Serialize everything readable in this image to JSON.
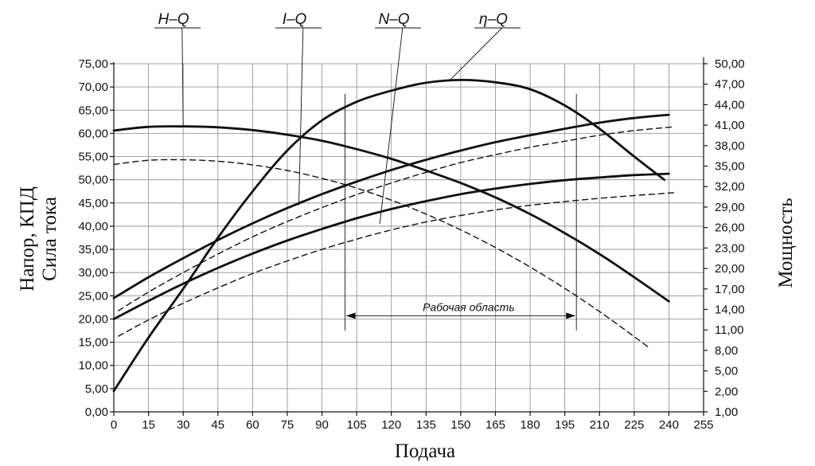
{
  "chart_data": {
    "type": "line",
    "title": "",
    "xlabel": "Подача",
    "ylabel_left": [
      "Напор, КПД",
      "Сила тока"
    ],
    "ylabel_right": "Мощность",
    "xlim": [
      0,
      255
    ],
    "ylim_left": [
      0,
      75
    ],
    "ylim_right": [
      1,
      50
    ],
    "x_ticks": [
      "0",
      "15",
      "30",
      "45",
      "60",
      "75",
      "90",
      "105",
      "120",
      "135",
      "150",
      "165",
      "180",
      "195",
      "210",
      "225",
      "240",
      "255"
    ],
    "y_left_ticks": [
      "0,00",
      "5,00",
      "10,00",
      "15,00",
      "20,00",
      "25,00",
      "30,00",
      "35,00",
      "40,00",
      "45,00",
      "50,00",
      "55,00",
      "60,00",
      "65,00",
      "70,00",
      "75,00"
    ],
    "y_right_ticks": [
      "1,00",
      "2,00",
      "5,00",
      "8,00",
      "11,00",
      "14,00",
      "17,00",
      "20,00",
      "23,00",
      "26,00",
      "29,00",
      "32,00",
      "35,00",
      "38,00",
      "41,00",
      "44,00",
      "47,00",
      "50,00"
    ],
    "grid": true,
    "curve_labels": [
      {
        "text": "H–Q",
        "x": 30,
        "y": 61.5
      },
      {
        "text": "I–Q",
        "x": 80,
        "y": 44.5
      },
      {
        "text": "N–Q",
        "x": 115,
        "y": 40.5
      },
      {
        "text": "η–Q",
        "x": 145,
        "y": 71.3
      }
    ],
    "working_area": {
      "label": "Рабочая область",
      "x_start": 100,
      "x_end": 200
    },
    "series": [
      {
        "style": "solid",
        "x": [
          0,
          15,
          30,
          45,
          60,
          75,
          90,
          105,
          120,
          135,
          150,
          165,
          180,
          195,
          210,
          225,
          240
        ],
        "y": [
          60.6,
          61.4,
          61.5,
          61.3,
          60.7,
          59.7,
          58.4,
          56.6,
          54.5,
          52.0,
          49.3,
          46.2,
          42.6,
          38.5,
          34.0,
          29.0,
          23.8
        ]
      },
      {
        "style": "dashed",
        "x": [
          0,
          15,
          30,
          45,
          60,
          75,
          90,
          105,
          120,
          135,
          150,
          165,
          180,
          195,
          210,
          225,
          232
        ],
        "y": [
          53.3,
          54.2,
          54.3,
          54.0,
          53.2,
          52.0,
          50.3,
          48.2,
          45.6,
          42.6,
          39.2,
          35.4,
          31.2,
          26.6,
          21.6,
          16.2,
          13.6
        ]
      },
      {
        "style": "solid",
        "x": [
          0,
          15,
          30,
          45,
          60,
          75,
          90,
          105,
          120,
          135,
          150,
          165,
          180,
          195,
          210,
          225,
          240
        ],
        "y": [
          24.5,
          29.0,
          33.1,
          37.0,
          40.6,
          43.9,
          46.9,
          49.6,
          52.1,
          54.3,
          56.3,
          58.1,
          59.6,
          61.0,
          62.3,
          63.3,
          64.0
        ]
      },
      {
        "style": "dashed",
        "x": [
          2,
          15,
          30,
          45,
          60,
          75,
          90,
          105,
          120,
          135,
          150,
          165,
          180,
          195,
          210,
          225,
          242
        ],
        "y": [
          21.8,
          25.8,
          30.0,
          34.0,
          37.7,
          41.0,
          44.0,
          46.8,
          49.3,
          51.6,
          53.7,
          55.4,
          57.0,
          58.3,
          59.6,
          60.6,
          61.4
        ]
      },
      {
        "style": "solid",
        "x": [
          0,
          15,
          30,
          45,
          60,
          75,
          90,
          105,
          120,
          135,
          150,
          165,
          180,
          195,
          210,
          225,
          240
        ],
        "y": [
          20.0,
          23.9,
          27.6,
          31.0,
          34.1,
          36.9,
          39.4,
          41.7,
          43.7,
          45.4,
          46.9,
          48.1,
          49.1,
          49.9,
          50.5,
          51.0,
          51.3
        ]
      },
      {
        "style": "dashed",
        "x": [
          2,
          15,
          30,
          45,
          60,
          75,
          90,
          105,
          120,
          135,
          150,
          165,
          180,
          195,
          210,
          225,
          242
        ],
        "y": [
          16.3,
          19.8,
          23.4,
          26.7,
          29.8,
          32.5,
          35.0,
          37.2,
          39.2,
          40.9,
          42.3,
          43.5,
          44.5,
          45.3,
          46.0,
          46.6,
          47.2
        ]
      },
      {
        "style": "solid",
        "x": [
          0,
          15,
          30,
          45,
          60,
          75,
          90,
          105,
          120,
          135,
          150,
          165,
          180,
          195,
          210,
          225,
          238
        ],
        "y": [
          4.5,
          16.0,
          26.5,
          37.5,
          47.5,
          56.3,
          62.8,
          66.8,
          69.2,
          70.9,
          71.5,
          71.0,
          69.5,
          66.0,
          61.0,
          55.0,
          50.0
        ]
      }
    ]
  }
}
